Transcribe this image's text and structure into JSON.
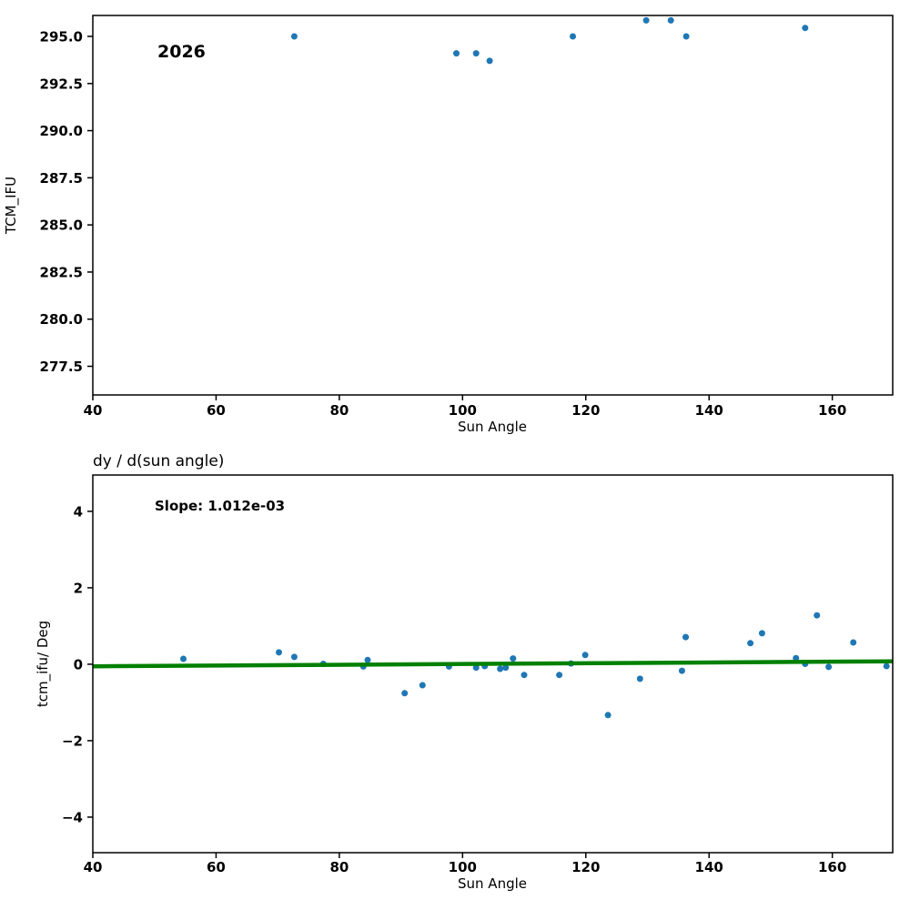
{
  "figure": {
    "background": "#ffffff",
    "spine_color": "#000000",
    "marker_color": "#1f77b4",
    "fit_line_color": "#008000"
  },
  "chart_data": [
    {
      "type": "scatter",
      "annotation": "2026",
      "xlabel": "Sun Angle",
      "ylabel": "TCM_IFU",
      "xlim": [
        40,
        169.8
      ],
      "ylim": [
        275.98,
        296.11
      ],
      "grid": false,
      "legend": "none",
      "xticks": {
        "values": [
          40,
          60,
          80,
          100,
          120,
          140,
          160
        ],
        "labels": [
          "40",
          "60",
          "80",
          "100",
          "120",
          "140",
          "160"
        ]
      },
      "yticks": {
        "values": [
          277.5,
          280.0,
          282.5,
          285.0,
          287.5,
          290.0,
          292.5,
          295.0
        ],
        "labels": [
          "277.5",
          "280.0",
          "282.5",
          "285.0",
          "287.5",
          "290.0",
          "292.5",
          "295.0"
        ]
      },
      "marker_color": "#1f77b4",
      "points": [
        [
          72.7,
          295.0
        ],
        [
          99.0,
          294.1
        ],
        [
          102.2,
          294.1
        ],
        [
          104.4,
          293.7
        ],
        [
          117.9,
          295.0
        ],
        [
          129.8,
          295.85
        ],
        [
          133.8,
          295.85
        ],
        [
          136.3,
          295.0
        ],
        [
          155.6,
          295.45
        ]
      ]
    },
    {
      "type": "scatter",
      "title": "dy / d(sun angle)",
      "annotation": "Slope: 1.012e-03",
      "slope": "1.012e-03",
      "xlabel": "Sun Angle",
      "ylabel": "tcm_ifu/ Deg",
      "xlim": [
        40,
        169.8
      ],
      "ylim": [
        -4.93,
        4.95
      ],
      "grid": false,
      "legend": "none",
      "xticks": {
        "values": [
          40,
          60,
          80,
          100,
          120,
          140,
          160
        ],
        "labels": [
          "40",
          "60",
          "80",
          "100",
          "120",
          "140",
          "160"
        ]
      },
      "yticks": {
        "values": [
          -4,
          -2,
          0,
          2,
          4
        ],
        "labels": [
          "−4",
          "−2",
          "0",
          "2",
          "4"
        ]
      },
      "marker_color": "#1f77b4",
      "points": [
        [
          54.7,
          0.14
        ],
        [
          70.2,
          0.31
        ],
        [
          72.7,
          0.19
        ],
        [
          77.4,
          0.01
        ],
        [
          83.9,
          -0.06
        ],
        [
          84.6,
          0.11
        ],
        [
          90.6,
          -0.76
        ],
        [
          93.5,
          -0.55
        ],
        [
          97.8,
          -0.06
        ],
        [
          102.2,
          -0.09
        ],
        [
          103.6,
          -0.05
        ],
        [
          106.1,
          -0.12
        ],
        [
          107.0,
          -0.09
        ],
        [
          108.2,
          0.15
        ],
        [
          110.0,
          -0.28
        ],
        [
          115.7,
          -0.28
        ],
        [
          117.6,
          0.02
        ],
        [
          119.9,
          0.24
        ],
        [
          123.6,
          -1.33
        ],
        [
          128.8,
          -0.38
        ],
        [
          135.6,
          -0.17
        ],
        [
          136.2,
          0.71
        ],
        [
          146.7,
          0.55
        ],
        [
          148.6,
          0.81
        ],
        [
          154.1,
          0.16
        ],
        [
          155.6,
          0.01
        ],
        [
          157.5,
          1.28
        ],
        [
          159.4,
          -0.07
        ],
        [
          163.4,
          0.57
        ],
        [
          168.8,
          -0.05
        ]
      ],
      "fit_line": {
        "x": [
          40,
          169.8
        ],
        "y": [
          -0.055,
          0.076
        ],
        "color": "#008000"
      }
    }
  ]
}
